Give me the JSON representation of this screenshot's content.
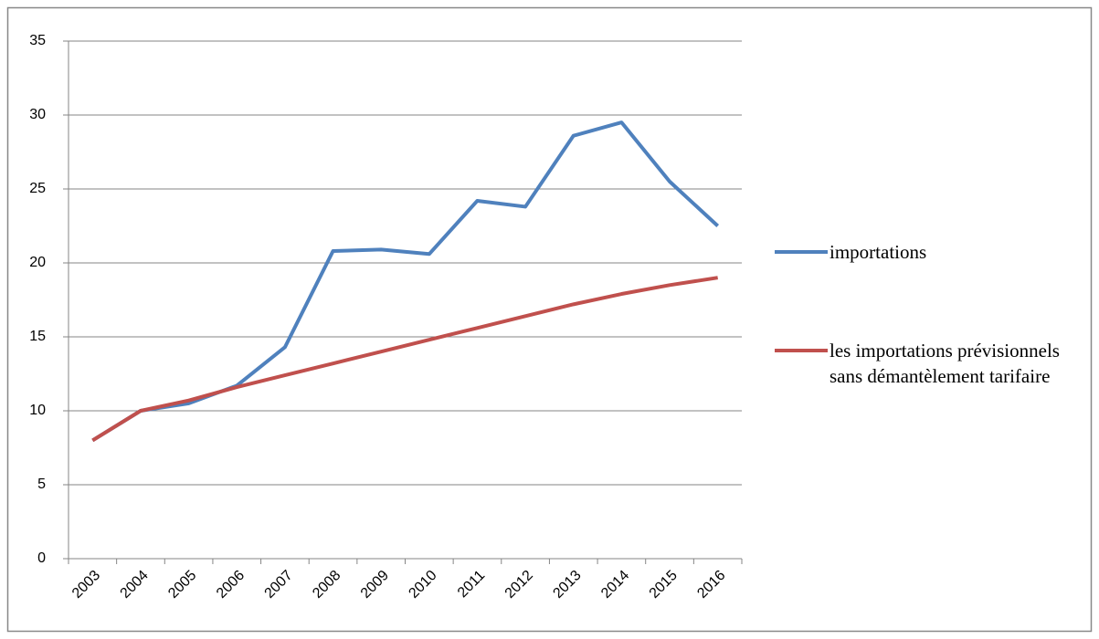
{
  "chart_data": {
    "type": "line",
    "categories": [
      "2003",
      "2004",
      "2005",
      "2006",
      "2007",
      "2008",
      "2009",
      "2010",
      "2011",
      "2012",
      "2013",
      "2014",
      "2015",
      "2016"
    ],
    "series": [
      {
        "name": "importations",
        "color": "#4f81bd",
        "values": [
          8,
          10,
          10.5,
          11.7,
          14.3,
          20.8,
          20.9,
          20.6,
          24.2,
          23.8,
          28.6,
          29.5,
          25.5,
          22.5
        ]
      },
      {
        "name": "les importations prévisionnels sans démantèlement tarifaire",
        "color": "#c0504d",
        "values": [
          8,
          10,
          10.7,
          11.6,
          12.4,
          13.2,
          14,
          14.8,
          15.6,
          16.4,
          17.2,
          17.9,
          18.5,
          19
        ]
      }
    ],
    "ylim": [
      0,
      35
    ],
    "yticks": [
      0,
      5,
      10,
      15,
      20,
      25,
      30,
      35
    ],
    "grid": true,
    "legend": "right"
  }
}
